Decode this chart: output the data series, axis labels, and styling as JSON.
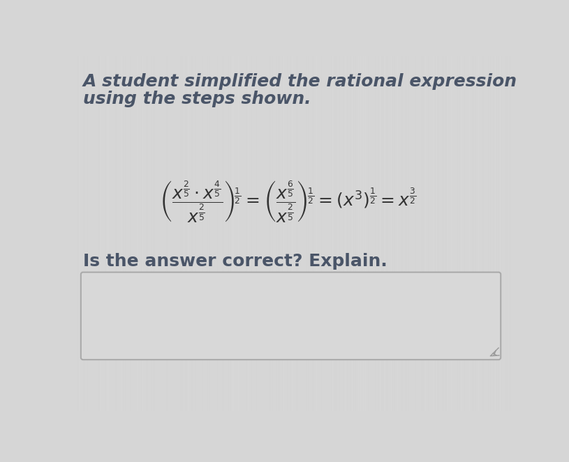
{
  "title_line1": "A student simplified the rational expression",
  "title_line2": "using the steps shown.",
  "title_fontsize": 18,
  "title_color": "#4a5568",
  "bg_color": "#d6d6d6",
  "math_expr": "$\\left(\\dfrac{x^{\\frac{2}{5}} \\cdot x^{\\frac{4}{5}}}{x^{\\frac{2}{5}}}\\right)^{\\!\\frac{1}{2}} = \\left(\\dfrac{x^{\\frac{6}{5}}}{x^{\\frac{2}{5}}}\\right)^{\\!\\frac{1}{2}} = \\left(x^{3}\\right)^{\\frac{1}{2}} = x^{\\frac{3}{2}}$",
  "math_fontsize": 18,
  "math_color": "#333333",
  "question": "Is the answer correct? Explain.",
  "question_fontsize": 18,
  "question_color": "#4a5568",
  "box_edge_color": "#aaaaaa",
  "box_face_color": "#d8d8d8",
  "resize_color": "#999999"
}
